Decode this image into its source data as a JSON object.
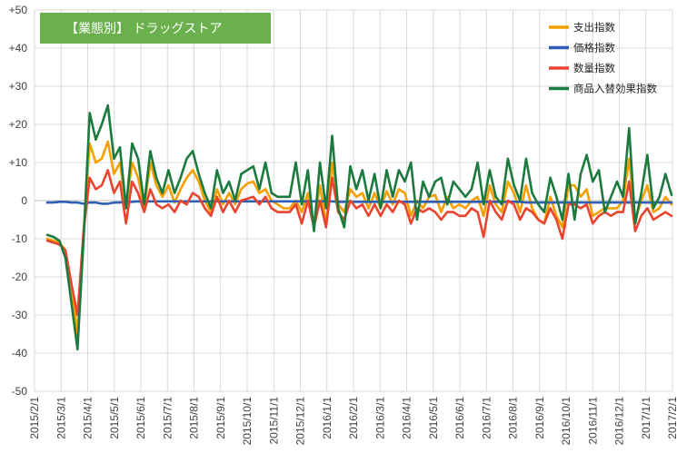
{
  "chart_data": {
    "type": "line",
    "title": "【業態別】 ドラッグストア",
    "colors": {
      "title_bg": "#6ab04c",
      "grid": "#d9d9d9",
      "zero_line": "#bfbfbf"
    },
    "y_range": [
      -50,
      50
    ],
    "y_step": 10,
    "y_tick_labels": [
      "+50",
      "+40",
      "+30",
      "+20",
      "+10",
      "0",
      "-10",
      "-20",
      "-30",
      "-40",
      "-50"
    ],
    "x_tick_labels": [
      "2015/2/1",
      "2015/3/1",
      "2015/4/1",
      "2015/5/1",
      "2015/6/1",
      "2015/7/1",
      "2015/8/1",
      "2015/9/1",
      "2015/10/1",
      "2015/11/1",
      "2015/12/1",
      "2016/1/1",
      "2016/2/1",
      "2016/3/1",
      "2016/4/1",
      "2016/5/1",
      "2016/6/1",
      "2016/7/1",
      "2016/8/1",
      "2016/9/1",
      "2016/10/1",
      "2016/11/1",
      "2016/12/1",
      "2017/1/1",
      "2017/2/1"
    ],
    "series_start": "2015/2/22",
    "series_interval": "7 days",
    "legend": {
      "placement": "top-right",
      "items": [
        {
          "label": "支出指数",
          "color": "#f5a000"
        },
        {
          "label": "価格指数",
          "color": "#2e5fb5"
        },
        {
          "label": "数量指数",
          "color": "#e8442e"
        },
        {
          "label": "商品入替効果指数",
          "color": "#1c7a3e"
        }
      ]
    },
    "series": [
      {
        "name": "支出指数",
        "color": "#f5a000",
        "values": [
          -10,
          -10.5,
          -11,
          -13,
          -22,
          -35,
          -8,
          15,
          10,
          11,
          15.5,
          7,
          10,
          -2,
          10,
          6,
          -2,
          10,
          4,
          1,
          4,
          -0.5,
          3,
          6,
          8,
          5,
          0,
          -3,
          3,
          -1,
          2,
          -1,
          3,
          4.5,
          5,
          2,
          3,
          0,
          -1,
          -2,
          -2,
          0,
          -3,
          2,
          -6,
          4,
          -6,
          10,
          -1,
          -3,
          3,
          1,
          2,
          -2,
          2,
          -2,
          2.5,
          -1,
          3,
          2,
          -4,
          0,
          -2,
          1,
          1.5,
          -3,
          1,
          -2,
          -1,
          -2,
          0,
          1,
          -4,
          4,
          -1,
          -3,
          5,
          2,
          -3,
          4,
          -2,
          -5,
          -6,
          1,
          -4,
          -7,
          4,
          4,
          1,
          3,
          -4,
          -3,
          -2,
          -2,
          -2,
          0,
          11,
          -5,
          0,
          4,
          -3,
          -2,
          1,
          -1
        ]
      },
      {
        "name": "価格指数",
        "color": "#2e5fb5",
        "values": [
          -0.5,
          -0.5,
          -0.3,
          -0.3,
          -0.5,
          -0.5,
          -0.8,
          -0.5,
          -0.5,
          -0.8,
          -0.8,
          -0.5,
          -0.5,
          -0.3,
          -0.3,
          -0.2,
          -0.3,
          -0.2,
          -0.2,
          -0.2,
          -0.2,
          -0.2,
          -0.2,
          -0.2,
          -0.2,
          -0.2,
          -0.2,
          -0.2,
          -0.2,
          -0.2,
          -0.2,
          -0.2,
          -0.2,
          -0.2,
          -0.2,
          -0.2,
          -0.2,
          -0.2,
          -0.2,
          -0.2,
          -0.2,
          -0.2,
          -0.2,
          -0.2,
          -0.2,
          -0.2,
          -0.2,
          -0.2,
          -0.3,
          -0.3,
          -0.3,
          -0.3,
          -0.3,
          -0.3,
          -0.3,
          -0.3,
          -0.3,
          -0.3,
          -0.3,
          -0.3,
          -0.3,
          -0.3,
          -0.3,
          -0.3,
          -0.3,
          -0.3,
          -0.3,
          -0.3,
          -0.3,
          -0.3,
          -0.3,
          -0.3,
          -0.3,
          -0.3,
          -0.3,
          -0.3,
          -0.3,
          -0.3,
          -0.3,
          -0.5,
          -0.5,
          -0.5,
          -0.5,
          -0.5,
          -0.5,
          -0.5,
          -0.5,
          -0.5,
          -0.5,
          -0.5,
          -0.5,
          -0.5,
          -0.5,
          -0.5,
          -0.5,
          -0.5,
          -0.5,
          -0.5,
          -0.5,
          -0.5,
          -0.5,
          -0.5,
          -0.5,
          -0.5
        ]
      },
      {
        "name": "数量指数",
        "color": "#e8442e",
        "values": [
          -10.5,
          -11,
          -11.5,
          -13,
          -22,
          -30,
          -8,
          6,
          3,
          4,
          8,
          2,
          5,
          -6,
          5,
          2,
          -3,
          3,
          -1,
          -2,
          -1,
          -3,
          0,
          -1,
          2,
          1,
          -2,
          -4,
          1,
          -3,
          0,
          -3,
          0,
          0.5,
          1,
          -1,
          1,
          -2,
          -3,
          -3,
          -3,
          -1,
          -6,
          0,
          -7,
          0,
          -7,
          6,
          -3,
          -5,
          0,
          -2,
          -1,
          -4,
          -1,
          -4,
          -1,
          -3,
          0,
          -1,
          -6,
          -2,
          -3,
          -2,
          -3,
          -5,
          -3,
          -3,
          -4,
          -4,
          -2,
          -3,
          -9.5,
          0,
          -3,
          -5,
          0,
          -1,
          -5,
          -2,
          -3,
          -5,
          -6,
          -2,
          -5,
          -10,
          -1,
          -1,
          -2,
          -1,
          -6,
          -4,
          -3,
          -4,
          -3,
          -3,
          5,
          -8,
          -4,
          -2,
          -5,
          -4,
          -3,
          -4
        ]
      },
      {
        "name": "商品入替効果指数",
        "color": "#1c7a3e",
        "values": [
          -9,
          -9.5,
          -10.5,
          -15,
          -27,
          -39,
          -10,
          23,
          16,
          20,
          25,
          11,
          14,
          -2,
          15,
          11,
          -1,
          13,
          6,
          2,
          8,
          2,
          6,
          11,
          13,
          7,
          2,
          -2,
          8,
          2,
          5,
          0,
          7,
          8,
          9,
          3,
          10,
          2,
          1,
          1,
          1,
          10,
          -1,
          8,
          -8,
          10,
          -2,
          17,
          -2,
          -7,
          9,
          3,
          8,
          0,
          7,
          -2,
          8,
          1,
          8,
          5,
          10,
          -5,
          5,
          1,
          5,
          6,
          -1,
          5,
          3,
          1,
          3,
          10,
          -1,
          8,
          1,
          -1,
          11,
          4,
          0,
          11,
          2,
          -1,
          -3,
          6,
          1,
          -5,
          7,
          -5,
          7,
          12,
          5,
          8,
          -3,
          1,
          5,
          1,
          19,
          -6,
          2,
          12,
          -2,
          1,
          7,
          1.5
        ]
      }
    ]
  }
}
